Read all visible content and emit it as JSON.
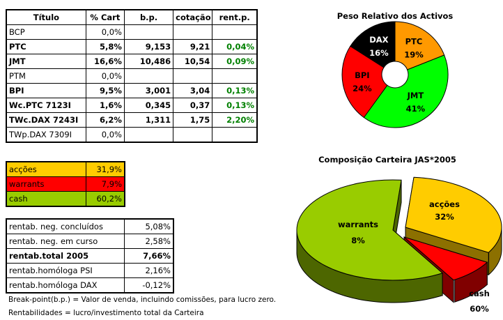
{
  "holdings": {
    "headers": [
      "Título",
      "% Cart",
      "b.p.",
      "cotação",
      "rent.p."
    ],
    "rows": [
      {
        "titulo": "BCP",
        "cart": "0,0%",
        "bp": "",
        "cot": "",
        "rent": "",
        "bold": false
      },
      {
        "titulo": "PTC",
        "cart": "5,8%",
        "bp": "9,153",
        "cot": "9,21",
        "rent": "0,04%",
        "bold": true
      },
      {
        "titulo": "JMT",
        "cart": "16,6%",
        "bp": "10,486",
        "cot": "10,54",
        "rent": "0,09%",
        "bold": true
      },
      {
        "titulo": "PTM",
        "cart": "0,0%",
        "bp": "",
        "cot": "",
        "rent": "",
        "bold": false
      },
      {
        "titulo": "BPI",
        "cart": "9,5%",
        "bp": "3,001",
        "cot": "3,04",
        "rent": "0,13%",
        "bold": true
      },
      {
        "titulo": "Wc.PTC 7123I",
        "cart": "1,6%",
        "bp": "0,345",
        "cot": "0,37",
        "rent": "0,13%",
        "bold": true
      },
      {
        "titulo": "TWc.DAX 7243I",
        "cart": "6,2%",
        "bp": "1,311",
        "cot": "1,75",
        "rent": "2,20%",
        "bold": true
      },
      {
        "titulo": "TWp.DAX 7309I",
        "cart": "0,0%",
        "bp": "",
        "cot": "",
        "rent": "",
        "bold": false
      }
    ]
  },
  "allocation": [
    {
      "label": "acções",
      "value": "31,9%",
      "color": "#FFCC00"
    },
    {
      "label": "warrants",
      "value": "7,9%",
      "color": "#FF0000"
    },
    {
      "label": "cash",
      "value": "60,2%",
      "color": "#99CC00"
    }
  ],
  "returns": [
    {
      "label": "rentab. neg. concluídos",
      "value": "5,08%",
      "bold": false
    },
    {
      "label": "rentab. neg. em curso",
      "value": "2,58%",
      "bold": false
    },
    {
      "label": "rentab.total 2005",
      "value": "7,66%",
      "bold": true
    },
    {
      "label": "rentab.homóloga PSI",
      "value": "2,16%",
      "bold": false
    },
    {
      "label": "rentab.homóloga DAX",
      "value": "-0,12%",
      "bold": false
    }
  ],
  "notes": [
    "Break-point(b.p.) = Valor de venda, incluindo comissões, para lucro zero.",
    "Rentabilidades = lucro/investimento total da Carteira"
  ],
  "chart_data": [
    {
      "type": "pie",
      "variant": "doughnut",
      "title": "Peso Relativo dos Activos",
      "categories": [
        "PTC",
        "JMT",
        "BPI",
        "DAX"
      ],
      "values": [
        19,
        41,
        24,
        16
      ],
      "labels": [
        "19%",
        "41%",
        "24%",
        "16%"
      ],
      "colors": [
        "#FF9900",
        "#00FF00",
        "#FF0000",
        "#000000"
      ],
      "label_colors": [
        "#000",
        "#000",
        "#000",
        "#fff"
      ]
    },
    {
      "type": "pie",
      "variant": "3d-exploded",
      "title": "Composição Carteira JAS*2005",
      "categories": [
        "acções",
        "warrants",
        "cash"
      ],
      "values": [
        32,
        8,
        60
      ],
      "labels": [
        "32%",
        "8%",
        "60%"
      ],
      "colors": [
        "#FFCC00",
        "#FF0000",
        "#99CC00"
      ],
      "side_colors": [
        "#8C7000",
        "#800000",
        "#4D6600"
      ]
    }
  ]
}
